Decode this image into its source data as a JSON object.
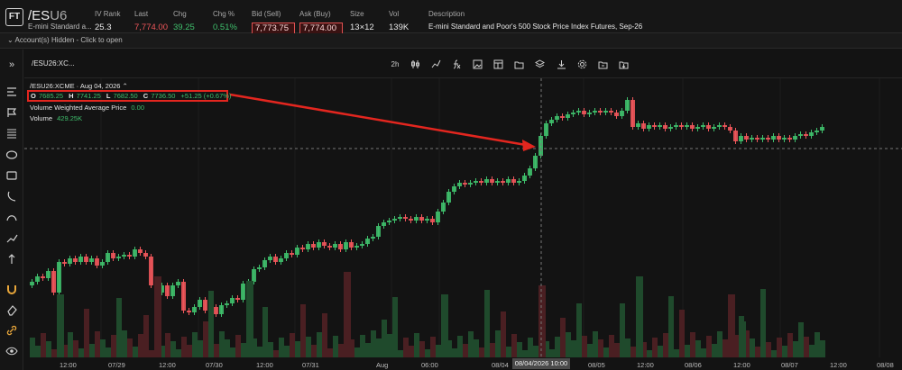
{
  "header": {
    "logo": "FT",
    "symbol_prefix": "/ES",
    "symbol_suffix": "U6",
    "symbol_desc": "E-mini Standard a...",
    "iv_rank_label": "IV Rank",
    "iv_rank": "25.3",
    "last_label": "Last",
    "last": "7,774.00",
    "chg_label": "Chg",
    "chg": "39.25",
    "chg_pct_label": "Chg %",
    "chg_pct": "0.51%",
    "bid_label": "Bid (Sell)",
    "bid": "7,773.75",
    "ask_label": "Ask (Buy)",
    "ask": "7,774.00",
    "size_label": "Size",
    "size": "13×12",
    "vol_label": "Vol",
    "vol": "139K",
    "desc_label": "Description",
    "desc": "E-mini Standard and Poor's 500 Stock Price Index Futures, Sep-26"
  },
  "account_bar": {
    "chevron": "⌄",
    "label": "Account(s) Hidden - Click to open"
  },
  "toolbar": {
    "expand": "»",
    "chart_tab": "/ESU26:XC...",
    "interval": "2h"
  },
  "legend": {
    "title": "/ESU26:XCME · Aug 04, 2026 ⌃",
    "o_label": "O",
    "o": "7685.25",
    "h_label": "H",
    "h": "7741.25",
    "l_label": "L",
    "l": "7682.50",
    "c_label": "C",
    "c": "7736.50",
    "change": "+51.25 (+0.67%)",
    "vwap_label": "Volume Weighted Average Price",
    "vwap": "0.00",
    "volume_label": "Volume",
    "volume": "429.25K"
  },
  "chart_data": {
    "type": "candlestick",
    "x_ticks": [
      "12:00",
      "07/29",
      "12:00",
      "07/30",
      "12:00",
      "07/31",
      "Aug",
      "06:00",
      "08/04",
      "08/05",
      "12:00",
      "08/06",
      "12:00",
      "08/07",
      "12:00",
      "08/08"
    ],
    "crosshair_label": "08/04/2026 10:00",
    "colors": {
      "up": "#3fbf6c",
      "down": "#f0575b",
      "annotation": "#e3261f"
    }
  }
}
